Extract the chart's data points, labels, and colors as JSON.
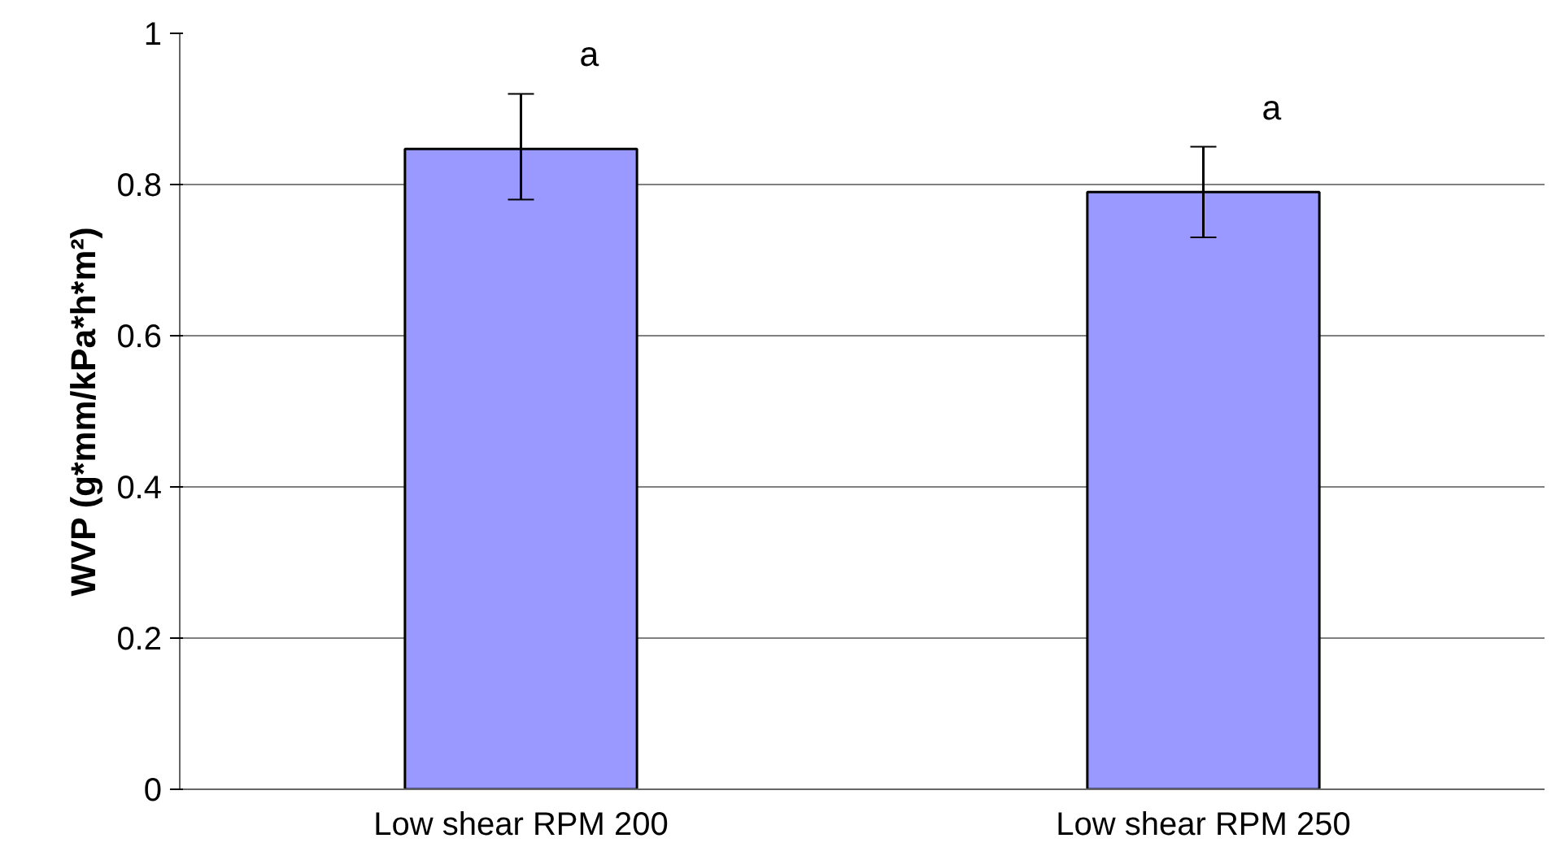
{
  "chart_data": {
    "type": "bar",
    "ylabel": "WVP (g*mm/kPa*h*m²)",
    "categories": [
      "Low shear RPM 200",
      "Low shear RPM 250"
    ],
    "values": [
      0.847,
      0.79
    ],
    "errors": [
      [
        0.78,
        0.92
      ],
      [
        0.73,
        0.85
      ]
    ],
    "color": "#9999ff",
    "ylim": [
      0,
      1
    ],
    "yticks": [
      0,
      0.2,
      0.4,
      0.6,
      0.8,
      1
    ],
    "grid": "y",
    "annotations": [
      "a",
      "a"
    ]
  }
}
